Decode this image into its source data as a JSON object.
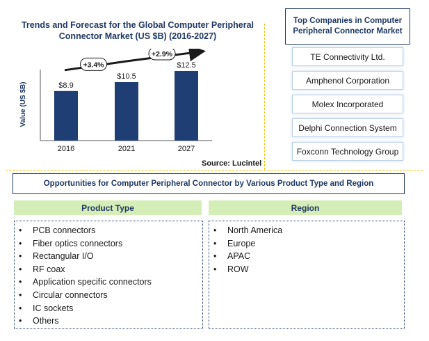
{
  "chart_data": {
    "type": "bar",
    "title": "Trends and Forecast for the Global Computer Peripheral Connector Market (US $B) (2016-2027)",
    "categories": [
      "2016",
      "2021",
      "2027"
    ],
    "values": [
      8.9,
      10.5,
      12.5
    ],
    "value_labels": [
      "$8.9",
      "$10.5",
      "$12.5"
    ],
    "ylabel": "Value (US $B)",
    "ylim": [
      0,
      14
    ],
    "grid": false,
    "bar_color": "#1f3e73",
    "growth_annotations": [
      {
        "label": "+3.4%",
        "from": "2016",
        "to": "2021"
      },
      {
        "label": "+2.9%",
        "from": "2021",
        "to": "2027"
      }
    ],
    "source": "Source: Lucintel"
  },
  "companies": {
    "title": "Top Companies in Computer Peripheral Connector Market",
    "items": [
      "TE Connectivity Ltd.",
      "Amphenol Corporation",
      "Molex Incorporated",
      "Delphi Connection System",
      "Foxconn Technology Group"
    ]
  },
  "opportunities": {
    "title": "Opportunities for Computer Peripheral Connector by Various Product Type and Region",
    "product_header": "Product Type",
    "region_header": "Region",
    "bullet": "•",
    "products": [
      "PCB connectors",
      "Fiber optics connectors",
      "Rectangular I/O",
      "RF coax",
      "Application specific connectors",
      "Circular connectors",
      "IC sockets",
      "Others"
    ],
    "regions": [
      "North America",
      "Europe",
      "APAC",
      "ROW"
    ]
  },
  "colors": {
    "accent": "#f2c200",
    "header_green": "#d5edb7",
    "navy": "#1f3864"
  }
}
